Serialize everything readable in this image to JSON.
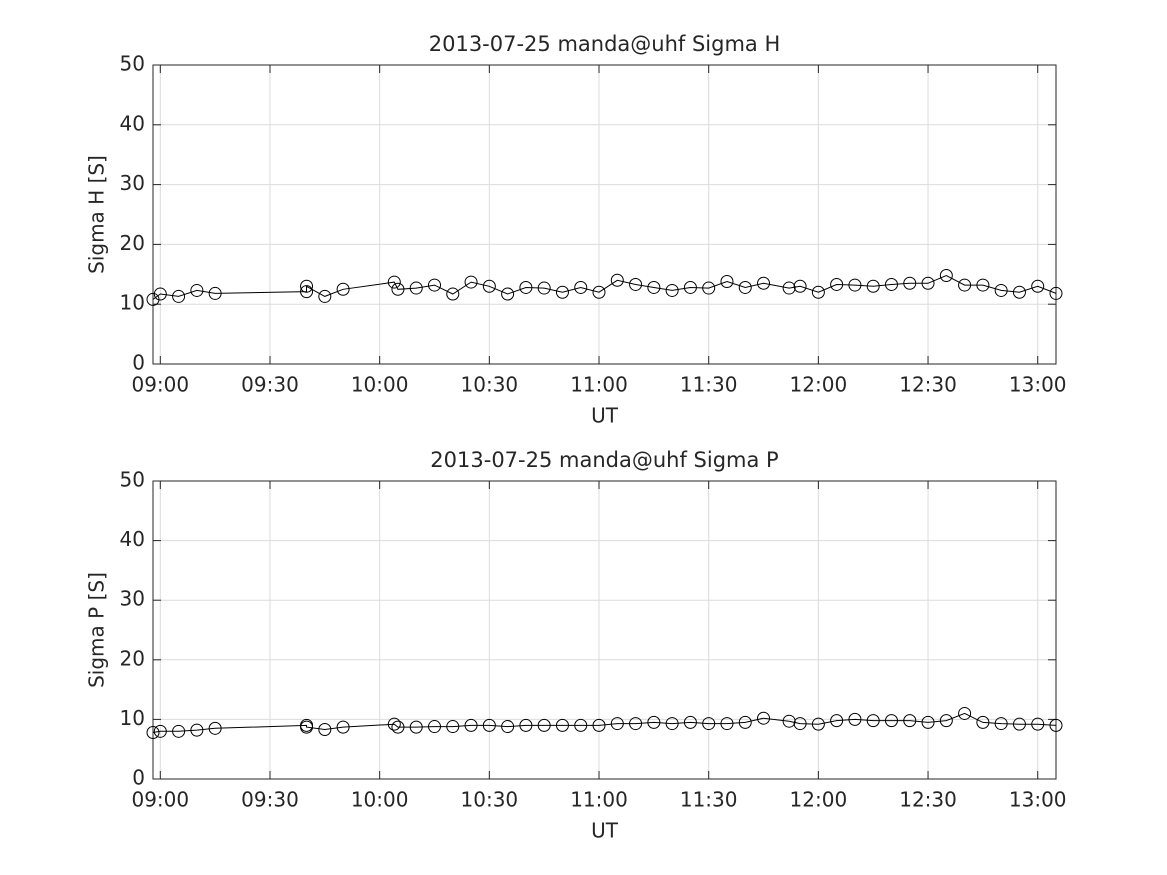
{
  "chart_data": [
    {
      "type": "line",
      "title": "2013-07-25  manda@uhf Sigma H",
      "xlabel": "UT",
      "ylabel": "Sigma H [S]",
      "xlim": [
        "08:58",
        "13:05"
      ],
      "xticks": [
        "09:00",
        "09:30",
        "10:00",
        "10:30",
        "11:00",
        "11:30",
        "12:00",
        "12:30",
        "13:00"
      ],
      "ylim": [
        0,
        50
      ],
      "yticks": [
        0,
        10,
        20,
        30,
        40,
        50
      ],
      "grid": true,
      "x": [
        "08:58",
        "09:00",
        "09:05",
        "09:10",
        "09:15",
        "09:40",
        "09:40",
        "09:45",
        "09:50",
        "10:04",
        "10:05",
        "10:10",
        "10:15",
        "10:20",
        "10:25",
        "10:30",
        "10:35",
        "10:40",
        "10:45",
        "10:50",
        "10:55",
        "11:00",
        "11:05",
        "11:10",
        "11:15",
        "11:20",
        "11:25",
        "11:30",
        "11:35",
        "11:40",
        "11:45",
        "11:52",
        "11:55",
        "12:00",
        "12:05",
        "12:10",
        "12:15",
        "12:20",
        "12:25",
        "12:30",
        "12:35",
        "12:40",
        "12:45",
        "12:50",
        "12:55",
        "13:00",
        "13:05"
      ],
      "series": [
        {
          "name": "Sigma H",
          "color": "#000000",
          "values": [
            10.8,
            11.7,
            11.3,
            12.3,
            11.8,
            12.1,
            13.0,
            11.3,
            12.5,
            13.7,
            12.5,
            12.7,
            13.2,
            11.7,
            13.7,
            13.0,
            11.7,
            12.8,
            12.7,
            12.0,
            12.8,
            12.0,
            14.0,
            13.3,
            12.8,
            12.3,
            12.8,
            12.7,
            13.8,
            12.8,
            13.5,
            12.7,
            13.0,
            12.0,
            13.3,
            13.2,
            13.0,
            13.3,
            13.5,
            13.5,
            14.8,
            13.2,
            13.2,
            12.3,
            12.0,
            13.0,
            11.8
          ]
        }
      ]
    },
    {
      "type": "line",
      "title": "2013-07-25  manda@uhf Sigma P",
      "xlabel": "UT",
      "ylabel": "Sigma P [S]",
      "xlim": [
        "08:58",
        "13:05"
      ],
      "xticks": [
        "09:00",
        "09:30",
        "10:00",
        "10:30",
        "11:00",
        "11:30",
        "12:00",
        "12:30",
        "13:00"
      ],
      "ylim": [
        0,
        50
      ],
      "yticks": [
        0,
        10,
        20,
        30,
        40,
        50
      ],
      "grid": true,
      "x": [
        "08:58",
        "09:00",
        "09:05",
        "09:10",
        "09:15",
        "09:40",
        "09:40",
        "09:45",
        "09:50",
        "10:04",
        "10:05",
        "10:10",
        "10:15",
        "10:20",
        "10:25",
        "10:30",
        "10:35",
        "10:40",
        "10:45",
        "10:50",
        "10:55",
        "11:00",
        "11:05",
        "11:10",
        "11:15",
        "11:20",
        "11:25",
        "11:30",
        "11:35",
        "11:40",
        "11:45",
        "11:52",
        "11:55",
        "12:00",
        "12:05",
        "12:10",
        "12:15",
        "12:20",
        "12:25",
        "12:30",
        "12:35",
        "12:40",
        "12:45",
        "12:50",
        "12:55",
        "13:00",
        "13:05"
      ],
      "series": [
        {
          "name": "Sigma P",
          "color": "#000000",
          "values": [
            7.8,
            8.0,
            8.0,
            8.2,
            8.5,
            9.0,
            8.7,
            8.3,
            8.7,
            9.2,
            8.7,
            8.7,
            8.8,
            8.8,
            9.0,
            9.0,
            8.8,
            9.0,
            9.0,
            9.0,
            9.0,
            9.0,
            9.3,
            9.3,
            9.5,
            9.3,
            9.5,
            9.3,
            9.3,
            9.5,
            10.2,
            9.7,
            9.3,
            9.2,
            9.8,
            10.0,
            9.8,
            9.8,
            9.8,
            9.5,
            9.8,
            11.0,
            9.5,
            9.3,
            9.2,
            9.2,
            9.0
          ]
        }
      ]
    }
  ]
}
